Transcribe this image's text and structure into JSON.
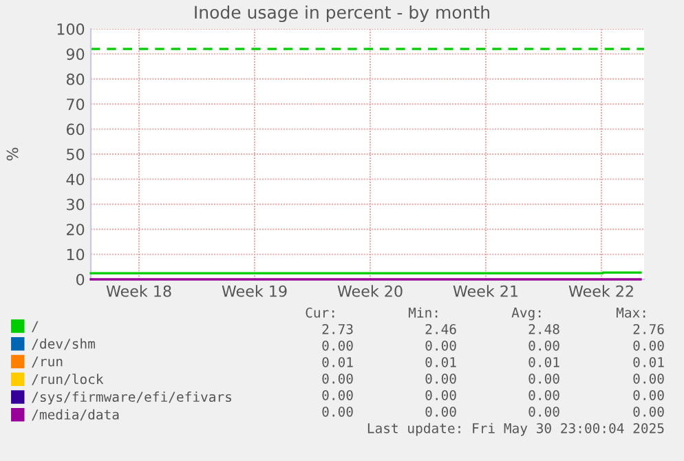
{
  "chart_data": {
    "type": "step",
    "title": "Inode usage in percent - by month",
    "ylabel": "%",
    "xlim": [
      "2025-04-28T14:00",
      "2025-06-01T02:00"
    ],
    "xticks": [
      {
        "value": "2025-05-01T12:00",
        "label": "Week 18"
      },
      {
        "value": "2025-05-08T12:00",
        "label": "Week 19"
      },
      {
        "value": "2025-05-15T12:00",
        "label": "Week 20"
      },
      {
        "value": "2025-05-22T12:00",
        "label": "Week 21"
      },
      {
        "value": "2025-05-29T12:00",
        "label": "Week 22"
      }
    ],
    "ylim": [
      0,
      100
    ],
    "yticks": [
      0,
      10,
      20,
      30,
      40,
      50,
      60,
      70,
      80,
      90,
      100
    ],
    "grid": true,
    "legend": "bottom",
    "line_style": "solid",
    "marker": "none",
    "ref_lines": [
      {
        "axis": "y",
        "value": 92,
        "color": "#00cc00",
        "line_style": "dashed"
      }
    ],
    "series": [
      {
        "name": "/",
        "color": "#00cc00",
        "x": [
          "2025-04-28T14:00",
          "2025-05-29T14:00",
          "2025-05-31T21:00"
        ],
        "values": [
          2.46,
          2.73,
          2.73
        ]
      },
      {
        "name": "/dev/shm",
        "color": "#0066b3"
      },
      {
        "name": "/run",
        "color": "#ff8000"
      },
      {
        "name": "/run/lock",
        "color": "#ffcc00"
      },
      {
        "name": "/sys/firmware/efi/efivars",
        "color": "#330099"
      },
      {
        "name": "/media/data",
        "color": "#990099",
        "x": [
          "2025-04-28T14:00",
          "2025-05-31T21:00"
        ],
        "values": [
          0,
          0
        ]
      }
    ],
    "annotations": [
      "Cur:",
      "Min:",
      "Avg:",
      "Max:",
      "2.73",
      "2.46",
      "2.48",
      "2.76",
      "0.00",
      "0.00",
      "0.00",
      "0.00",
      "0.01",
      "0.01",
      "0.01",
      "0.01",
      "0.00",
      "0.00",
      "0.00",
      "0.00",
      "0.00",
      "0.00",
      "0.00",
      "0.00",
      "0.00",
      "0.00",
      "0.00",
      "0.00",
      "Last update: Fri May 30 23:00:04 2025"
    ]
  }
}
